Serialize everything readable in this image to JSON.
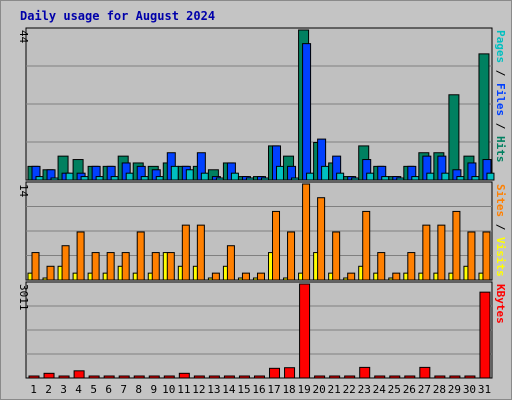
{
  "chart_data": {
    "type": "bar",
    "title": "Daily usage for August 2024",
    "days": [
      "1",
      "2",
      "3",
      "4",
      "5",
      "6",
      "7",
      "8",
      "9",
      "10",
      "11",
      "12",
      "13",
      "14",
      "15",
      "16",
      "17",
      "18",
      "19",
      "20",
      "21",
      "22",
      "23",
      "24",
      "25",
      "26",
      "27",
      "28",
      "29",
      "30",
      "31"
    ],
    "weekend_days": [
      "3",
      "4",
      "10",
      "11",
      "17",
      "18",
      "24",
      "25",
      "31"
    ],
    "panels": [
      {
        "id": "hits-panel",
        "max_label": "44",
        "ylim": [
          0,
          44
        ],
        "legend": [
          {
            "text": "Pages",
            "color": "#00c0c0"
          },
          {
            "text": " / ",
            "color": "#000000"
          },
          {
            "text": "Files",
            "color": "#0040ff"
          },
          {
            "text": " / ",
            "color": "#000000"
          },
          {
            "text": "Hits",
            "color": "#008060"
          }
        ],
        "series": [
          {
            "name": "Hits",
            "color": "#008060",
            "values": [
              4,
              3,
              7,
              6,
              4,
              4,
              7,
              5,
              4,
              5,
              4,
              4,
              3,
              5,
              1,
              1,
              10,
              7,
              44,
              11,
              5,
              1,
              10,
              4,
              1,
              4,
              8,
              8,
              25,
              7,
              37
            ]
          },
          {
            "name": "Files",
            "color": "#0040ff",
            "values": [
              4,
              3,
              2,
              2,
              4,
              4,
              5,
              4,
              3,
              8,
              4,
              8,
              1,
              5,
              1,
              1,
              10,
              4,
              40,
              12,
              7,
              1,
              6,
              4,
              1,
              4,
              7,
              7,
              3,
              5,
              6
            ]
          },
          {
            "name": "Pages",
            "color": "#00c0c0",
            "values": [
              1,
              0,
              2,
              1,
              1,
              1,
              2,
              1,
              1,
              4,
              3,
              2,
              0,
              2,
              0,
              0,
              4,
              0,
              2,
              4,
              2,
              0,
              2,
              1,
              0,
              1,
              2,
              2,
              1,
              1,
              2
            ]
          }
        ]
      },
      {
        "id": "visits-panel",
        "max_label": "14",
        "ylim": [
          0,
          14
        ],
        "legend": [
          {
            "text": "Sites",
            "color": "#ff8000"
          },
          {
            "text": " / ",
            "color": "#000000"
          },
          {
            "text": "Visits",
            "color": "#ffff00"
          }
        ],
        "series": [
          {
            "name": "Visits",
            "color": "#ffff00",
            "values": [
              1,
              0,
              2,
              1,
              1,
              1,
              2,
              1,
              1,
              4,
              2,
              2,
              0,
              2,
              0,
              0,
              4,
              0,
              1,
              4,
              1,
              0,
              2,
              1,
              0,
              1,
              1,
              1,
              1,
              2,
              1
            ]
          },
          {
            "name": "Sites",
            "color": "#ff8000",
            "values": [
              4,
              2,
              5,
              7,
              4,
              4,
              4,
              7,
              4,
              4,
              8,
              8,
              1,
              5,
              1,
              1,
              10,
              7,
              14,
              12,
              7,
              1,
              10,
              4,
              1,
              4,
              8,
              8,
              10,
              7,
              7
            ]
          }
        ]
      },
      {
        "id": "kbytes-panel",
        "max_label": "3011",
        "ylim": [
          0,
          3011
        ],
        "legend": [
          {
            "text": "KBytes",
            "color": "#ff0000"
          }
        ],
        "series": [
          {
            "name": "KBytes",
            "color": "#ff0000",
            "values": [
              60,
              150,
              60,
              230,
              40,
              40,
              40,
              40,
              40,
              40,
              150,
              40,
              40,
              40,
              40,
              40,
              310,
              330,
              3011,
              40,
              40,
              40,
              340,
              40,
              40,
              40,
              340,
              60,
              40,
              40,
              2750
            ]
          }
        ]
      }
    ]
  }
}
